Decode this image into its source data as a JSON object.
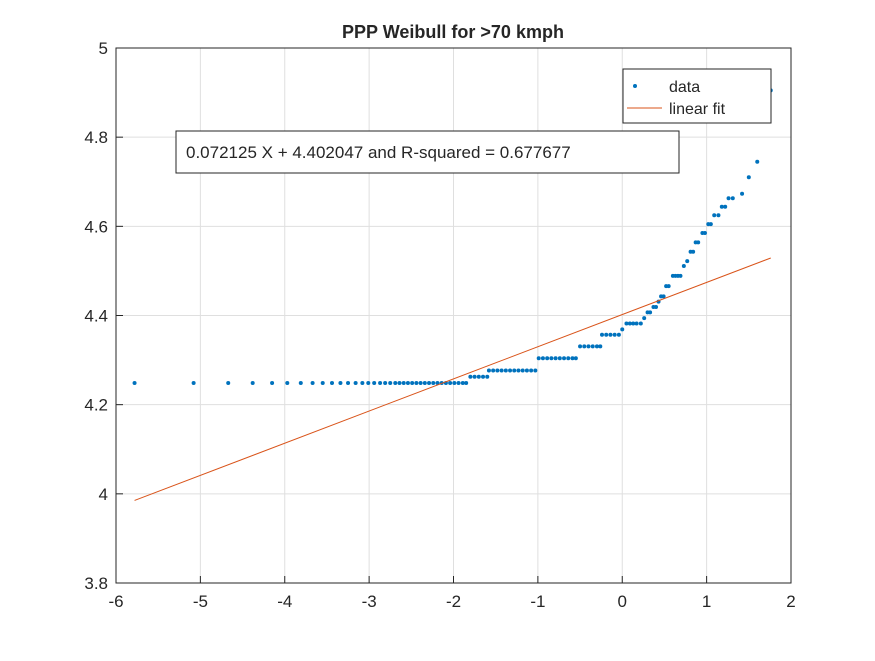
{
  "chart_data": {
    "type": "scatter",
    "title": "PPP Weibull for >70 kmph",
    "annotation": "0.072125 X + 4.402047 and R-squared = 0.677677",
    "xlim": [
      -6,
      2
    ],
    "ylim": [
      3.8,
      5
    ],
    "xticks": [
      -6,
      -5,
      -4,
      -3,
      -2,
      -1,
      0,
      1,
      2
    ],
    "yticks": [
      3.8,
      4,
      4.2,
      4.4,
      4.6,
      4.8,
      5
    ],
    "grid": true,
    "legend": "northeast",
    "series": [
      {
        "name": "data",
        "color": "#0072bd",
        "type": "scatter",
        "x": [
          -5.78,
          -5.08,
          -4.67,
          -4.38,
          -4.15,
          -3.97,
          -3.81,
          -3.67,
          -3.55,
          -3.44,
          -3.34,
          -3.25,
          -3.16,
          -3.08,
          -3.01,
          -2.94,
          -2.87,
          -2.81,
          -2.75,
          -2.69,
          -2.64,
          -2.59,
          -2.54,
          -2.49,
          -2.44,
          -2.39,
          -2.34,
          -2.29,
          -2.24,
          -2.19,
          -2.14,
          -2.09,
          -2.04,
          -1.99,
          -1.94,
          -1.89,
          -1.85,
          -1.8,
          -1.75,
          -1.7,
          -1.65,
          -1.6,
          -1.58,
          -1.53,
          -1.48,
          -1.43,
          -1.38,
          -1.33,
          -1.28,
          -1.23,
          -1.18,
          -1.13,
          -1.08,
          -1.03,
          -0.99,
          -0.94,
          -0.89,
          -0.84,
          -0.79,
          -0.74,
          -0.69,
          -0.64,
          -0.59,
          -0.55,
          -0.5,
          -0.45,
          -0.4,
          -0.35,
          -0.3,
          -0.26,
          -0.24,
          -0.19,
          -0.14,
          -0.09,
          -0.04,
          0.0,
          0.05,
          0.09,
          0.13,
          0.17,
          0.22,
          0.26,
          0.3,
          0.33,
          0.37,
          0.4,
          0.43,
          0.46,
          0.49,
          0.52,
          0.55,
          0.6,
          0.63,
          0.66,
          0.69,
          0.73,
          0.77,
          0.81,
          0.84,
          0.87,
          0.9,
          0.95,
          0.98,
          1.02,
          1.05,
          1.09,
          1.14,
          1.18,
          1.22,
          1.26,
          1.31,
          1.42,
          1.5,
          1.6,
          1.76
        ],
        "values": [
          4.2485,
          4.2485,
          4.2485,
          4.2485,
          4.2485,
          4.2485,
          4.2485,
          4.2485,
          4.2485,
          4.2485,
          4.2485,
          4.2485,
          4.2485,
          4.2485,
          4.2485,
          4.2485,
          4.2485,
          4.2485,
          4.2485,
          4.2485,
          4.2485,
          4.2485,
          4.2485,
          4.2485,
          4.2485,
          4.2485,
          4.2485,
          4.2485,
          4.2485,
          4.2485,
          4.2485,
          4.2485,
          4.2485,
          4.2485,
          4.2485,
          4.2485,
          4.2485,
          4.2627,
          4.2627,
          4.2627,
          4.2627,
          4.2627,
          4.2767,
          4.2767,
          4.2767,
          4.2767,
          4.2767,
          4.2767,
          4.2767,
          4.2767,
          4.2767,
          4.2767,
          4.2767,
          4.2767,
          4.3041,
          4.3041,
          4.3041,
          4.3041,
          4.3041,
          4.3041,
          4.3041,
          4.3041,
          4.3041,
          4.3041,
          4.3307,
          4.3307,
          4.3307,
          4.3307,
          4.3307,
          4.3307,
          4.3567,
          4.3567,
          4.3567,
          4.3567,
          4.3567,
          4.369,
          4.382,
          4.382,
          4.382,
          4.382,
          4.382,
          4.394,
          4.407,
          4.407,
          4.419,
          4.419,
          4.431,
          4.443,
          4.443,
          4.466,
          4.466,
          4.489,
          4.489,
          4.489,
          4.489,
          4.511,
          4.522,
          4.543,
          4.543,
          4.564,
          4.564,
          4.585,
          4.585,
          4.605,
          4.605,
          4.625,
          4.625,
          4.644,
          4.644,
          4.663,
          4.663,
          4.673,
          4.71,
          4.745,
          4.905
        ]
      },
      {
        "name": "linear fit",
        "color": "#d95319",
        "type": "line",
        "x": [
          -5.78,
          1.76
        ],
        "values": [
          3.9852,
          4.529
        ]
      }
    ]
  }
}
